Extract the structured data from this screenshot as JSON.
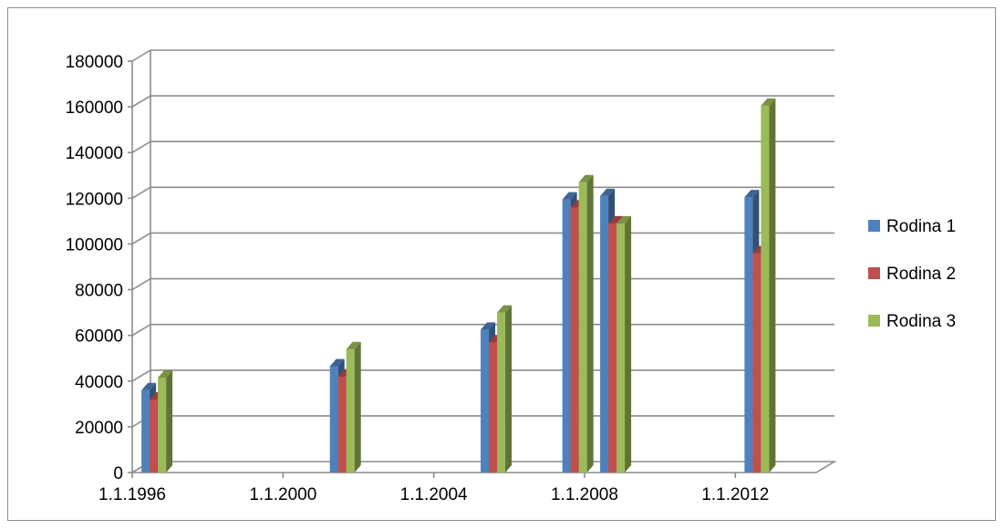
{
  "chart_data": {
    "type": "bar",
    "title": "",
    "xlabel": "",
    "ylabel": "",
    "x_axis": "date",
    "ylim": [
      0,
      180000
    ],
    "y_ticks": [
      0,
      20000,
      40000,
      60000,
      80000,
      100000,
      120000,
      140000,
      160000,
      180000
    ],
    "x_tick_labels": [
      "1.1.1996",
      "1.1.2000",
      "1.1.2004",
      "1.1.2008",
      "1.1.2012"
    ],
    "x_ticks": [
      "1996-01-01",
      "2000-01-01",
      "2004-01-01",
      "2008-01-01",
      "2012-01-01"
    ],
    "x_range": [
      "1996-01-01",
      "2014-01-01"
    ],
    "grid": true,
    "legend_position": "right",
    "categories": [
      "1996-07-01",
      "2001-07-01",
      "2005-07-01",
      "2007-09-01",
      "2008-09-01",
      "2012-07-01"
    ],
    "series": [
      {
        "name": "Rodina 1",
        "color": "#4f81bd",
        "values": [
          36000,
          46500,
          62500,
          119500,
          121000,
          120500
        ]
      },
      {
        "name": "Rodina 2",
        "color": "#c0504d",
        "values": [
          32000,
          42000,
          57000,
          116000,
          109000,
          96000
        ]
      },
      {
        "name": "Rodina 3",
        "color": "#9bbb59",
        "values": [
          41500,
          54000,
          70000,
          127000,
          109000,
          160500
        ]
      }
    ]
  }
}
